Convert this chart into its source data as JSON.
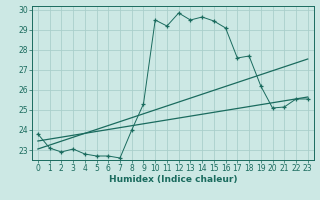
{
  "title": "",
  "xlabel": "Humidex (Indice chaleur)",
  "xlim": [
    -0.5,
    23.5
  ],
  "ylim": [
    22.5,
    30.2
  ],
  "xticks": [
    0,
    1,
    2,
    3,
    4,
    5,
    6,
    7,
    8,
    9,
    10,
    11,
    12,
    13,
    14,
    15,
    16,
    17,
    18,
    19,
    20,
    21,
    22,
    23
  ],
  "yticks": [
    23,
    24,
    25,
    26,
    27,
    28,
    29,
    30
  ],
  "bg_color": "#cce8e4",
  "line_color": "#1a6b5e",
  "grid_color": "#aacfcb",
  "data_x": [
    0,
    1,
    2,
    3,
    4,
    5,
    6,
    7,
    8,
    9,
    10,
    11,
    12,
    13,
    14,
    15,
    16,
    17,
    18,
    19,
    20,
    21,
    22,
    23
  ],
  "data_y": [
    23.8,
    23.1,
    22.9,
    23.05,
    22.8,
    22.7,
    22.7,
    22.6,
    24.0,
    25.3,
    29.5,
    29.2,
    29.85,
    29.5,
    29.65,
    29.45,
    29.1,
    27.6,
    27.7,
    26.2,
    25.1,
    25.15,
    25.55,
    25.55
  ],
  "line1_x": [
    0,
    23
  ],
  "line1_y": [
    23.05,
    27.55
  ],
  "line2_x": [
    0,
    23
  ],
  "line2_y": [
    23.45,
    25.65
  ]
}
